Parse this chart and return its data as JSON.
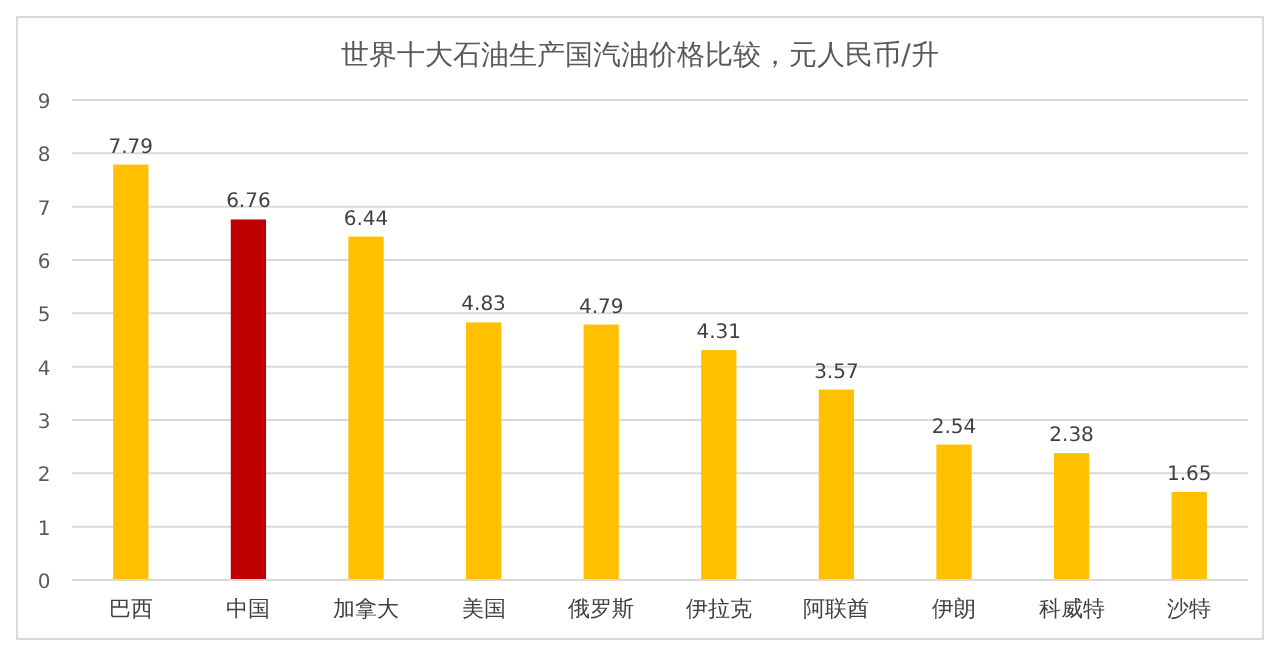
{
  "chart_data": {
    "type": "bar",
    "title": "世界十大石油生产国汽油价格比较，元人民币/升",
    "categories": [
      "巴西",
      "中国",
      "加拿大",
      "美国",
      "俄罗斯",
      "伊拉克",
      "阿联酋",
      "伊朗",
      "科威特",
      "沙特"
    ],
    "values": [
      7.79,
      6.76,
      6.44,
      4.83,
      4.79,
      4.31,
      3.57,
      2.54,
      2.38,
      1.65
    ],
    "colors": [
      "#ffc000",
      "#c00000",
      "#ffc000",
      "#ffc000",
      "#ffc000",
      "#ffc000",
      "#ffc000",
      "#ffc000",
      "#ffc000",
      "#ffc000"
    ],
    "ylim": [
      0,
      9
    ],
    "yticks": [
      0,
      1,
      2,
      3,
      4,
      5,
      6,
      7,
      8,
      9
    ],
    "grid": "y",
    "data_labels": true
  }
}
